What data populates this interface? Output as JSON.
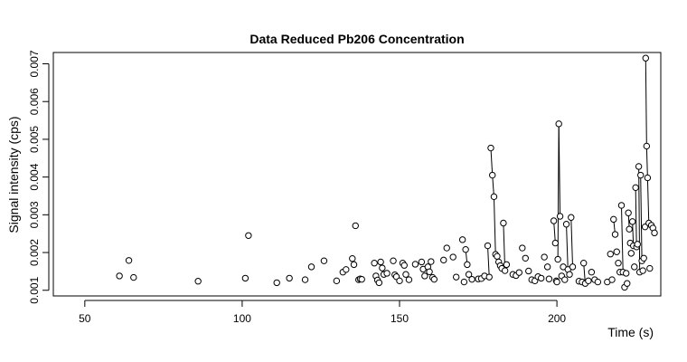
{
  "chart_data": {
    "type": "line",
    "title": "Data Reduced Pb206 Concentration",
    "xlabel": "Time (s)",
    "ylabel": "Signal intensity (cps)",
    "xlim": [
      40,
      233
    ],
    "ylim": [
      0.00085,
      0.0073
    ],
    "xticks": [
      50,
      100,
      150,
      200
    ],
    "yticks": [
      0.001,
      0.002,
      0.003,
      0.004,
      0.005,
      0.006,
      0.007
    ],
    "grid": false,
    "legend": "none",
    "colors": {
      "points": "#000000",
      "lines": "#000000",
      "background": "#ffffff"
    },
    "series": [
      {
        "points": [
          [
            61,
            0.00138
          ],
          [
            64,
            0.00179
          ],
          [
            65.5,
            0.00134
          ],
          [
            86,
            0.00124
          ],
          [
            101,
            0.00132
          ],
          [
            102,
            0.00245
          ],
          [
            111,
            0.0012
          ],
          [
            115,
            0.00132
          ],
          [
            120,
            0.00128
          ],
          [
            122,
            0.00162
          ],
          [
            126,
            0.00178
          ],
          [
            130,
            0.00125
          ],
          [
            132,
            0.00148
          ],
          [
            133,
            0.00155
          ],
          [
            135,
            0.00184
          ],
          [
            135.5,
            0.00168
          ],
          [
            136,
            0.00271
          ],
          [
            137,
            0.00128
          ],
          [
            137.5,
            0.0013
          ],
          [
            138,
            0.00129
          ],
          [
            142,
            0.00172
          ],
          [
            142.5,
            0.00138
          ],
          [
            143,
            0.00127
          ],
          [
            143.5,
            0.0012
          ],
          [
            144,
            0.00175
          ],
          [
            144.5,
            0.00159
          ],
          [
            145,
            0.00142
          ],
          [
            146,
            0.00145
          ],
          [
            148,
            0.00178
          ],
          [
            148.5,
            0.00141
          ],
          [
            149,
            0.00136
          ],
          [
            150,
            0.00125
          ],
          [
            151,
            0.00172
          ],
          [
            151.5,
            0.00166
          ],
          [
            152,
            0.00142
          ],
          [
            153,
            0.00128
          ],
          [
            155,
            0.00169
          ],
          [
            157,
            0.00175
          ],
          [
            157.5,
            0.00156
          ],
          [
            158,
            0.00138
          ],
          [
            159,
            0.00162
          ],
          [
            159.5,
            0.00149
          ],
          [
            160,
            0.00176
          ],
          [
            160.5,
            0.00134
          ],
          [
            161,
            0.00129
          ],
          [
            164,
            0.0018
          ],
          [
            165,
            0.00212
          ],
          [
            167,
            0.00188
          ],
          [
            168,
            0.00135
          ],
          [
            170,
            0.00234
          ],
          [
            170.5,
            0.00122
          ],
          [
            171,
            0.00208
          ],
          [
            171.5,
            0.00168
          ],
          [
            172,
            0.00142
          ],
          [
            173,
            0.00129
          ],
          [
            175,
            0.0013
          ],
          [
            176,
            0.00131
          ],
          [
            177,
            0.00138
          ],
          [
            178,
            0.00218
          ],
          [
            178.5,
            0.00135
          ],
          [
            179,
            0.00477
          ],
          [
            179.5,
            0.00405
          ],
          [
            180,
            0.00348
          ],
          [
            180.5,
            0.00195
          ],
          [
            181,
            0.0019
          ],
          [
            181.5,
            0.00175
          ],
          [
            182,
            0.00165
          ],
          [
            182.5,
            0.00158
          ],
          [
            183,
            0.00278
          ],
          [
            183.5,
            0.00152
          ],
          [
            184,
            0.00168
          ],
          [
            186,
            0.00142
          ],
          [
            187,
            0.00139
          ],
          [
            188,
            0.00147
          ],
          [
            189,
            0.00212
          ],
          [
            190,
            0.00185
          ],
          [
            191,
            0.00151
          ],
          [
            192,
            0.00128
          ],
          [
            193,
            0.00125
          ],
          [
            194,
            0.00136
          ],
          [
            195,
            0.00132
          ],
          [
            196,
            0.00188
          ],
          [
            197,
            0.00162
          ],
          [
            197.5,
            0.0013
          ],
          [
            199,
            0.00284
          ],
          [
            199.5,
            0.00225
          ],
          [
            199.8,
            0.00125
          ],
          [
            200,
            0.00122
          ],
          [
            200.3,
            0.00182
          ],
          [
            200.6,
            0.00541
          ],
          [
            201,
            0.00296
          ],
          [
            201.5,
            0.00138
          ],
          [
            202,
            0.00162
          ],
          [
            202.5,
            0.00128
          ],
          [
            203,
            0.00275
          ],
          [
            203.5,
            0.00155
          ],
          [
            204,
            0.00142
          ],
          [
            204.5,
            0.00293
          ],
          [
            205,
            0.00162
          ],
          [
            207,
            0.00124
          ],
          [
            208,
            0.00122
          ],
          [
            208.5,
            0.00172
          ],
          [
            209,
            0.00118
          ],
          [
            210,
            0.00125
          ],
          [
            211,
            0.00148
          ],
          [
            212,
            0.00128
          ],
          [
            213,
            0.00122
          ],
          [
            216,
            0.00122
          ],
          [
            217,
            0.00196
          ],
          [
            217.5,
            0.00128
          ],
          [
            218,
            0.00288
          ],
          [
            218.5,
            0.00248
          ],
          [
            219,
            0.00202
          ],
          [
            219.5,
            0.00172
          ],
          [
            220,
            0.00148
          ],
          [
            220.5,
            0.00325
          ],
          [
            221,
            0.00148
          ],
          [
            221.5,
            0.00108
          ],
          [
            222,
            0.00145
          ],
          [
            222.3,
            0.00118
          ],
          [
            222.7,
            0.00305
          ],
          [
            223,
            0.00262
          ],
          [
            223.3,
            0.00225
          ],
          [
            223.6,
            0.00198
          ],
          [
            224,
            0.00282
          ],
          [
            224.3,
            0.00218
          ],
          [
            224.6,
            0.00162
          ],
          [
            225,
            0.00372
          ],
          [
            225.3,
            0.00215
          ],
          [
            225.6,
            0.00222
          ],
          [
            226,
            0.00428
          ],
          [
            226.3,
            0.00148
          ],
          [
            226.6,
            0.00405
          ],
          [
            227,
            0.00178
          ],
          [
            227.3,
            0.00152
          ],
          [
            227.6,
            0.00185
          ],
          [
            228,
            0.00268
          ],
          [
            228.2,
            0.00715
          ],
          [
            228.5,
            0.00482
          ],
          [
            228.8,
            0.00398
          ],
          [
            229.2,
            0.00278
          ],
          [
            229.5,
            0.00158
          ],
          [
            230,
            0.00272
          ],
          [
            230.5,
            0.00265
          ],
          [
            231,
            0.00252
          ]
        ],
        "segments": [
          [
            [
              179,
              0.00477
            ],
            [
              179.5,
              0.00405
            ]
          ],
          [
            [
              179.5,
              0.00405
            ],
            [
              180,
              0.00348
            ]
          ],
          [
            [
              180,
              0.00348
            ],
            [
              180.5,
              0.00195
            ]
          ],
          [
            [
              200.3,
              0.00182
            ],
            [
              200.6,
              0.00541
            ]
          ],
          [
            [
              200.6,
              0.00541
            ],
            [
              201,
              0.00296
            ]
          ],
          [
            [
              203,
              0.00275
            ],
            [
              203.5,
              0.00155
            ]
          ],
          [
            [
              204.5,
              0.00293
            ],
            [
              205,
              0.00162
            ]
          ],
          [
            [
              199,
              0.00284
            ],
            [
              199.5,
              0.00225
            ]
          ],
          [
            [
              225,
              0.00372
            ],
            [
              225.3,
              0.00215
            ]
          ],
          [
            [
              226,
              0.00428
            ],
            [
              226.3,
              0.00148
            ]
          ],
          [
            [
              226.6,
              0.00405
            ],
            [
              227,
              0.00178
            ]
          ],
          [
            [
              228.2,
              0.00715
            ],
            [
              228.5,
              0.00482
            ]
          ],
          [
            [
              228.5,
              0.00482
            ],
            [
              228.8,
              0.00398
            ]
          ],
          [
            [
              228.8,
              0.00398
            ],
            [
              229.2,
              0.00278
            ]
          ],
          [
            [
              220.5,
              0.00325
            ],
            [
              221,
              0.00148
            ]
          ],
          [
            [
              222.7,
              0.00305
            ],
            [
              223,
              0.00262
            ]
          ],
          [
            [
              218,
              0.00288
            ],
            [
              218.5,
              0.00248
            ]
          ],
          [
            [
              171,
              0.00208
            ],
            [
              171.5,
              0.00168
            ]
          ],
          [
            [
              178,
              0.00218
            ],
            [
              178.5,
              0.00135
            ]
          ],
          [
            [
              183,
              0.00278
            ],
            [
              183.5,
              0.00152
            ]
          ],
          [
            [
              208.5,
              0.00172
            ],
            [
              209,
              0.00118
            ]
          ],
          [
            [
              224,
              0.00282
            ],
            [
              224.3,
              0.00218
            ]
          ],
          [
            [
              230,
              0.00272
            ],
            [
              230.5,
              0.00265
            ]
          ],
          [
            [
              230.5,
              0.00265
            ],
            [
              231,
              0.00252
            ]
          ]
        ]
      }
    ]
  }
}
